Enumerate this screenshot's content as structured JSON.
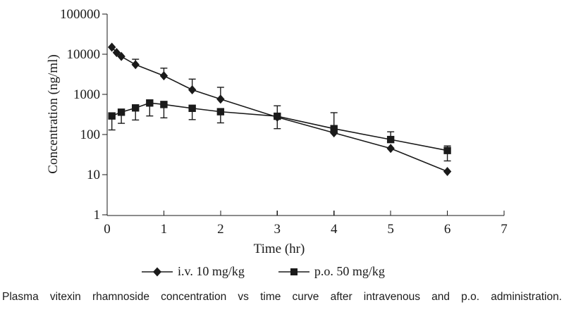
{
  "figure": {
    "caption": "Plasma vitexin rhamnoside concentration vs time curve after intravenous and p.o. administration."
  },
  "chart_data": {
    "type": "line",
    "title": "",
    "xlabel": "Time (hr)",
    "ylabel": "Concentration (ng/ml)",
    "y_scale": "log",
    "xlim": [
      0,
      7
    ],
    "ylim": [
      1,
      100000
    ],
    "x_ticks": [
      0,
      1,
      2,
      3,
      4,
      5,
      6,
      7
    ],
    "y_ticks": [
      1,
      10,
      100,
      1000,
      10000,
      100000
    ],
    "grid": false,
    "legend_position": "bottom",
    "line_color": "#1a1a1a",
    "series": [
      {
        "name": "i.v. 10 mg/kg",
        "marker": "diamond",
        "color": "#1a1a1a",
        "x": [
          0.083,
          0.167,
          0.25,
          0.5,
          1,
          1.5,
          2,
          3,
          4,
          5,
          6
        ],
        "y": [
          15000,
          11000,
          8800,
          5500,
          2900,
          1300,
          760,
          270,
          110,
          45,
          12
        ],
        "err_hi": [
          null,
          null,
          null,
          7500,
          4500,
          2400,
          1500,
          520,
          null,
          null,
          null
        ],
        "err_lo": [
          null,
          null,
          null,
          null,
          null,
          null,
          null,
          140,
          null,
          null,
          null
        ]
      },
      {
        "name": "p.o. 50 mg/kg",
        "marker": "square",
        "color": "#1a1a1a",
        "x": [
          0.083,
          0.25,
          0.5,
          0.75,
          1,
          1.5,
          2,
          3,
          4,
          5,
          6
        ],
        "y": [
          290,
          360,
          460,
          610,
          560,
          450,
          370,
          285,
          140,
          75,
          40
        ],
        "err_hi": [
          null,
          null,
          null,
          null,
          null,
          null,
          null,
          null,
          350,
          117,
          52
        ],
        "err_lo": [
          130,
          190,
          230,
          290,
          260,
          235,
          195,
          null,
          null,
          null,
          22
        ]
      }
    ]
  }
}
